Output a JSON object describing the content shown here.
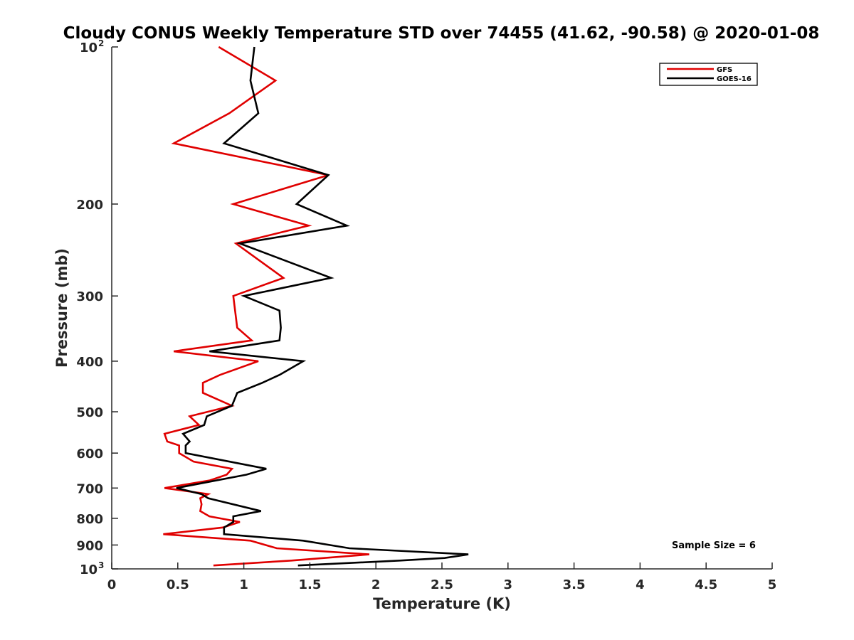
{
  "chart_data": {
    "type": "line",
    "title": "Cloudy CONUS Weekly Temperature STD over 74455 (41.62, -90.58) @ 2020-01-08",
    "xlabel": "Temperature (K)",
    "ylabel": "Pressure (mb)",
    "xlim": [
      0,
      5
    ],
    "ylim": [
      100,
      1000
    ],
    "y_scale": "log",
    "y_reversed": true,
    "x_ticks": [
      {
        "value": 0,
        "label": "0"
      },
      {
        "value": 0.5,
        "label": "0.5"
      },
      {
        "value": 1,
        "label": "1"
      },
      {
        "value": 1.5,
        "label": "1.5"
      },
      {
        "value": 2,
        "label": "2"
      },
      {
        "value": 2.5,
        "label": "2.5"
      },
      {
        "value": 3,
        "label": "3"
      },
      {
        "value": 3.5,
        "label": "3.5"
      },
      {
        "value": 4,
        "label": "4"
      },
      {
        "value": 4.5,
        "label": "4.5"
      },
      {
        "value": 5,
        "label": "5"
      }
    ],
    "y_ticks": [
      {
        "value": 100,
        "base": "10",
        "exp": "2"
      },
      {
        "value": 200,
        "label": "200"
      },
      {
        "value": 300,
        "label": "300"
      },
      {
        "value": 400,
        "label": "400"
      },
      {
        "value": 500,
        "label": "500"
      },
      {
        "value": 600,
        "label": "600"
      },
      {
        "value": 700,
        "label": "700"
      },
      {
        "value": 800,
        "label": "800"
      },
      {
        "value": 900,
        "label": "900"
      },
      {
        "value": 1000,
        "base": "10",
        "exp": "3"
      }
    ],
    "grid": false,
    "legend_position": "top-right",
    "annotation": "Sample Size = 6",
    "series": [
      {
        "name": "GFS",
        "color": "#e00000",
        "points": [
          [
            0.81,
            100
          ],
          [
            1.24,
            116
          ],
          [
            0.89,
            134
          ],
          [
            0.47,
            153
          ],
          [
            1.64,
            176
          ],
          [
            0.92,
            200
          ],
          [
            1.49,
            220
          ],
          [
            0.94,
            238
          ],
          [
            1.3,
            277
          ],
          [
            0.92,
            300
          ],
          [
            0.95,
            345
          ],
          [
            1.06,
            365
          ],
          [
            0.47,
            383
          ],
          [
            1.11,
            400
          ],
          [
            0.82,
            425
          ],
          [
            0.69,
            440
          ],
          [
            0.69,
            460
          ],
          [
            0.91,
            487
          ],
          [
            0.59,
            510
          ],
          [
            0.66,
            530
          ],
          [
            0.4,
            551
          ],
          [
            0.42,
            570
          ],
          [
            0.51,
            580
          ],
          [
            0.51,
            600
          ],
          [
            0.62,
            623
          ],
          [
            0.91,
            643
          ],
          [
            0.87,
            660
          ],
          [
            0.74,
            677
          ],
          [
            0.4,
            700
          ],
          [
            0.73,
            719
          ],
          [
            0.67,
            732
          ],
          [
            0.68,
            752
          ],
          [
            0.67,
            775
          ],
          [
            0.74,
            793
          ],
          [
            0.97,
            813
          ],
          [
            0.84,
            833
          ],
          [
            0.39,
            858
          ],
          [
            1.05,
            883
          ],
          [
            1.25,
            913
          ],
          [
            1.95,
            938
          ],
          [
            1.36,
            964
          ],
          [
            0.77,
            985
          ]
        ]
      },
      {
        "name": "GOES-16",
        "color": "#000000",
        "points": [
          [
            1.08,
            100
          ],
          [
            1.05,
            116
          ],
          [
            1.11,
            134
          ],
          [
            0.85,
            153
          ],
          [
            1.64,
            176
          ],
          [
            1.4,
            200
          ],
          [
            1.78,
            220
          ],
          [
            0.97,
            238
          ],
          [
            1.66,
            277
          ],
          [
            1.0,
            300
          ],
          [
            1.27,
            320
          ],
          [
            1.28,
            345
          ],
          [
            1.27,
            365
          ],
          [
            0.74,
            383
          ],
          [
            1.45,
            400
          ],
          [
            1.27,
            425
          ],
          [
            1.14,
            440
          ],
          [
            0.95,
            460
          ],
          [
            0.91,
            487
          ],
          [
            0.72,
            510
          ],
          [
            0.7,
            530
          ],
          [
            0.54,
            551
          ],
          [
            0.59,
            570
          ],
          [
            0.56,
            580
          ],
          [
            0.56,
            600
          ],
          [
            1.17,
            643
          ],
          [
            1.02,
            660
          ],
          [
            0.49,
            700
          ],
          [
            0.68,
            719
          ],
          [
            0.73,
            732
          ],
          [
            1.13,
            775
          ],
          [
            0.92,
            793
          ],
          [
            0.92,
            813
          ],
          [
            0.85,
            833
          ],
          [
            0.85,
            858
          ],
          [
            1.45,
            883
          ],
          [
            1.8,
            913
          ],
          [
            2.7,
            938
          ],
          [
            2.52,
            953
          ],
          [
            2.18,
            964
          ],
          [
            1.41,
            985
          ]
        ]
      }
    ]
  }
}
